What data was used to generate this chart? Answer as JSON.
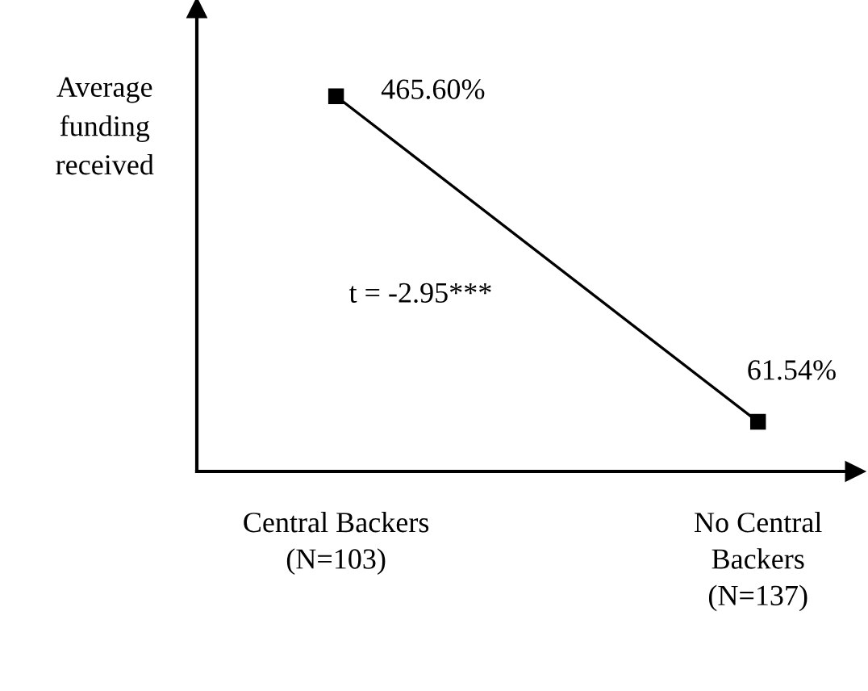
{
  "chart_data": {
    "type": "line",
    "ylabel": "Average\nfunding\nreceived",
    "categories": [
      "Central Backers\n(N=103)",
      "No Central\nBackers\n(N=137)"
    ],
    "values": [
      465.6,
      61.54
    ],
    "value_labels": [
      "465.60%",
      "61.54%"
    ],
    "color": "#000000",
    "marker": "square",
    "line_style": "solid",
    "ylim": [
      0,
      575
    ],
    "tick_labels": "x",
    "grid": false,
    "annotations": [
      "t = -2.95***"
    ]
  }
}
